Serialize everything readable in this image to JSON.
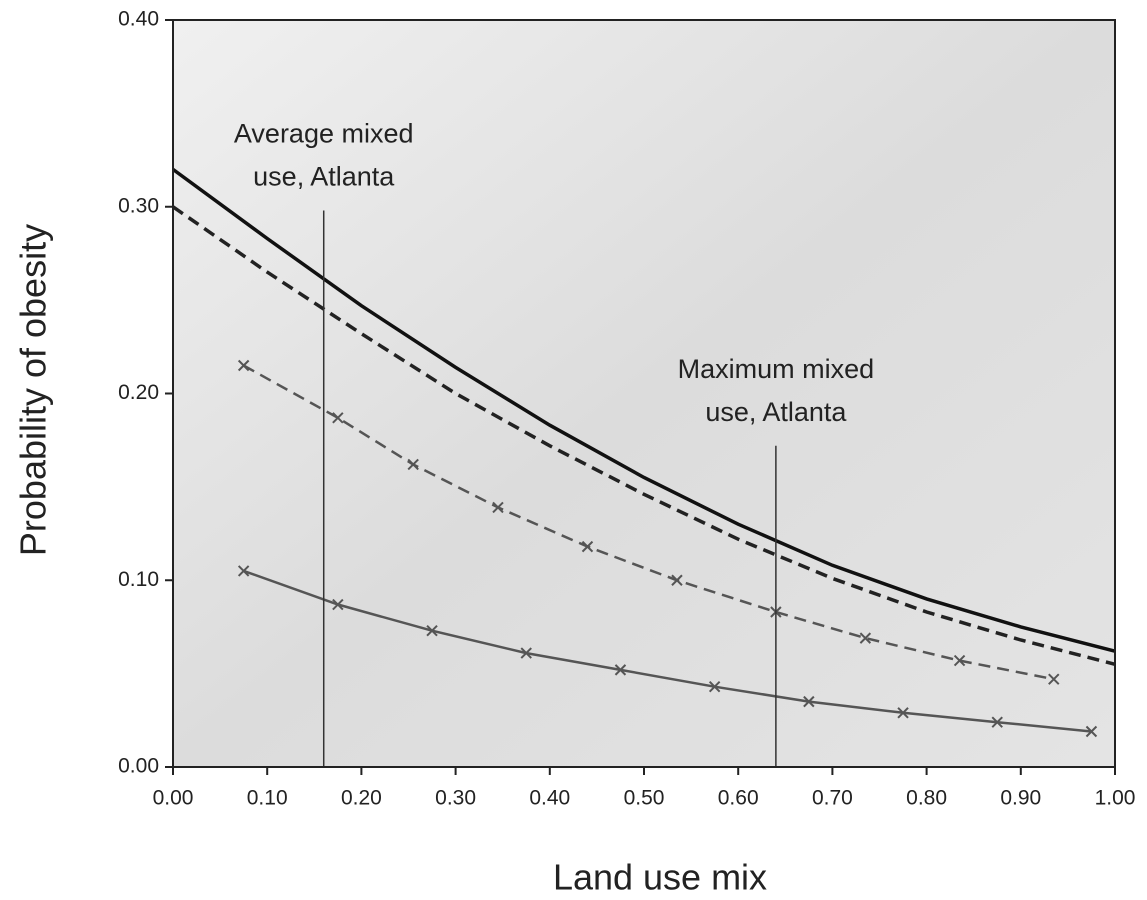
{
  "chart_data": {
    "type": "line",
    "x_label": "Land use mix",
    "y_label": "Probability of obesity",
    "xlim": [
      0,
      1
    ],
    "ylim": [
      0,
      0.4
    ],
    "xticks": [
      {
        "value": 0,
        "label": "0.00"
      },
      {
        "value": 0.1,
        "label": "0.10"
      },
      {
        "value": 0.2,
        "label": "0.20"
      },
      {
        "value": 0.3,
        "label": "0.30"
      },
      {
        "value": 0.4,
        "label": "0.40"
      },
      {
        "value": 0.5,
        "label": "0.50"
      },
      {
        "value": 0.6,
        "label": "0.60"
      },
      {
        "value": 0.7,
        "label": "0.70"
      },
      {
        "value": 0.8,
        "label": "0.80"
      },
      {
        "value": 0.9,
        "label": "0.90"
      },
      {
        "value": 1,
        "label": "1.00"
      }
    ],
    "yticks": [
      {
        "value": 0,
        "label": "0.00"
      },
      {
        "value": 0.1,
        "label": "0.10"
      },
      {
        "value": 0.2,
        "label": "0.20"
      },
      {
        "value": 0.3,
        "label": "0.30"
      },
      {
        "value": 0.4,
        "label": "0.40"
      }
    ],
    "series": [
      {
        "color": "#111111",
        "dash": false,
        "marker": null,
        "x": [
          0,
          0.1,
          0.2,
          0.3,
          0.4,
          0.5,
          0.6,
          0.7,
          0.8,
          0.9,
          1
        ],
        "values": [
          0.32,
          0.283,
          0.247,
          0.214,
          0.183,
          0.155,
          0.13,
          0.108,
          0.09,
          0.075,
          0.062
        ]
      },
      {
        "color": "#222222",
        "dash": true,
        "marker": null,
        "x": [
          0,
          0.1,
          0.2,
          0.3,
          0.4,
          0.5,
          0.6,
          0.7,
          0.8,
          0.9,
          1
        ],
        "values": [
          0.3,
          0.265,
          0.232,
          0.2,
          0.172,
          0.146,
          0.122,
          0.101,
          0.083,
          0.068,
          0.055
        ]
      },
      {
        "color": "#555555",
        "dash": true,
        "marker": "x",
        "x": [
          0.075,
          0.175,
          0.255,
          0.345,
          0.44,
          0.535,
          0.64,
          0.735,
          0.835,
          0.935
        ],
        "values": [
          0.215,
          0.187,
          0.162,
          0.139,
          0.118,
          0.1,
          0.083,
          0.069,
          0.057,
          0.047
        ]
      },
      {
        "color": "#555555",
        "dash": false,
        "marker": "x",
        "x": [
          0.075,
          0.175,
          0.275,
          0.375,
          0.475,
          0.575,
          0.675,
          0.775,
          0.875,
          0.975
        ],
        "values": [
          0.105,
          0.087,
          0.073,
          0.061,
          0.052,
          0.043,
          0.035,
          0.029,
          0.024,
          0.019
        ]
      }
    ],
    "annotations": [
      {
        "text": [
          "Average mixed",
          "use, Atlanta"
        ],
        "x": 0.16,
        "y_top": 0.298
      },
      {
        "text": [
          "Maximum mixed",
          "use, Atlanta"
        ],
        "x": 0.64,
        "y_top": 0.172
      }
    ]
  }
}
